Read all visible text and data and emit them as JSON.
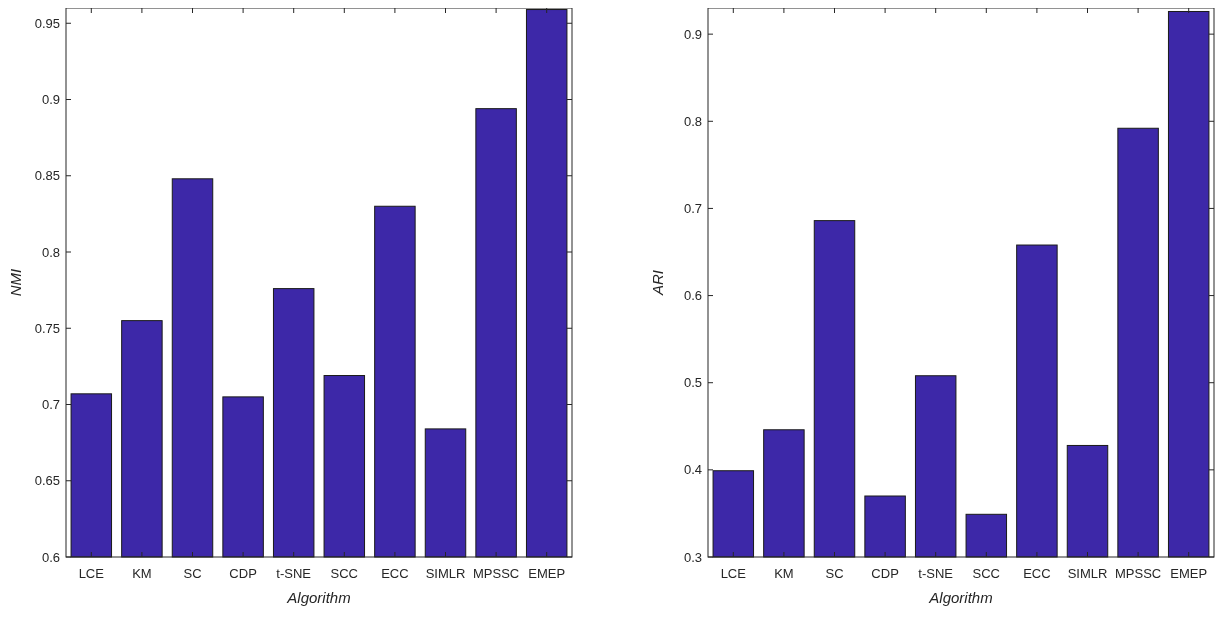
{
  "chart_data": [
    {
      "type": "bar",
      "xlabel": "Algorithm",
      "ylabel": "NMI",
      "categories": [
        "LCE",
        "KM",
        "SC",
        "CDP",
        "t-SNE",
        "SCC",
        "ECC",
        "SIMLR",
        "MPSSC",
        "EMEP"
      ],
      "color": "#3d28a8",
      "values": [
        0.707,
        0.755,
        0.848,
        0.705,
        0.776,
        0.719,
        0.83,
        0.684,
        0.894,
        0.959
      ],
      "ylim": [
        0.6,
        0.96
      ],
      "yticks": [
        0.6,
        0.65,
        0.7,
        0.75,
        0.8,
        0.85,
        0.9,
        0.95
      ],
      "grid": false
    },
    {
      "type": "bar",
      "xlabel": "Algorithm",
      "ylabel": "ARI",
      "categories": [
        "LCE",
        "KM",
        "SC",
        "CDP",
        "t-SNE",
        "SCC",
        "ECC",
        "SIMLR",
        "MPSSC",
        "EMEP"
      ],
      "color": "#3d28a8",
      "values": [
        0.399,
        0.446,
        0.686,
        0.37,
        0.508,
        0.349,
        0.658,
        0.428,
        0.792,
        0.926
      ],
      "ylim": [
        0.3,
        0.93
      ],
      "yticks": [
        0.3,
        0.4,
        0.5,
        0.6,
        0.7,
        0.8,
        0.9
      ],
      "grid": false
    }
  ]
}
